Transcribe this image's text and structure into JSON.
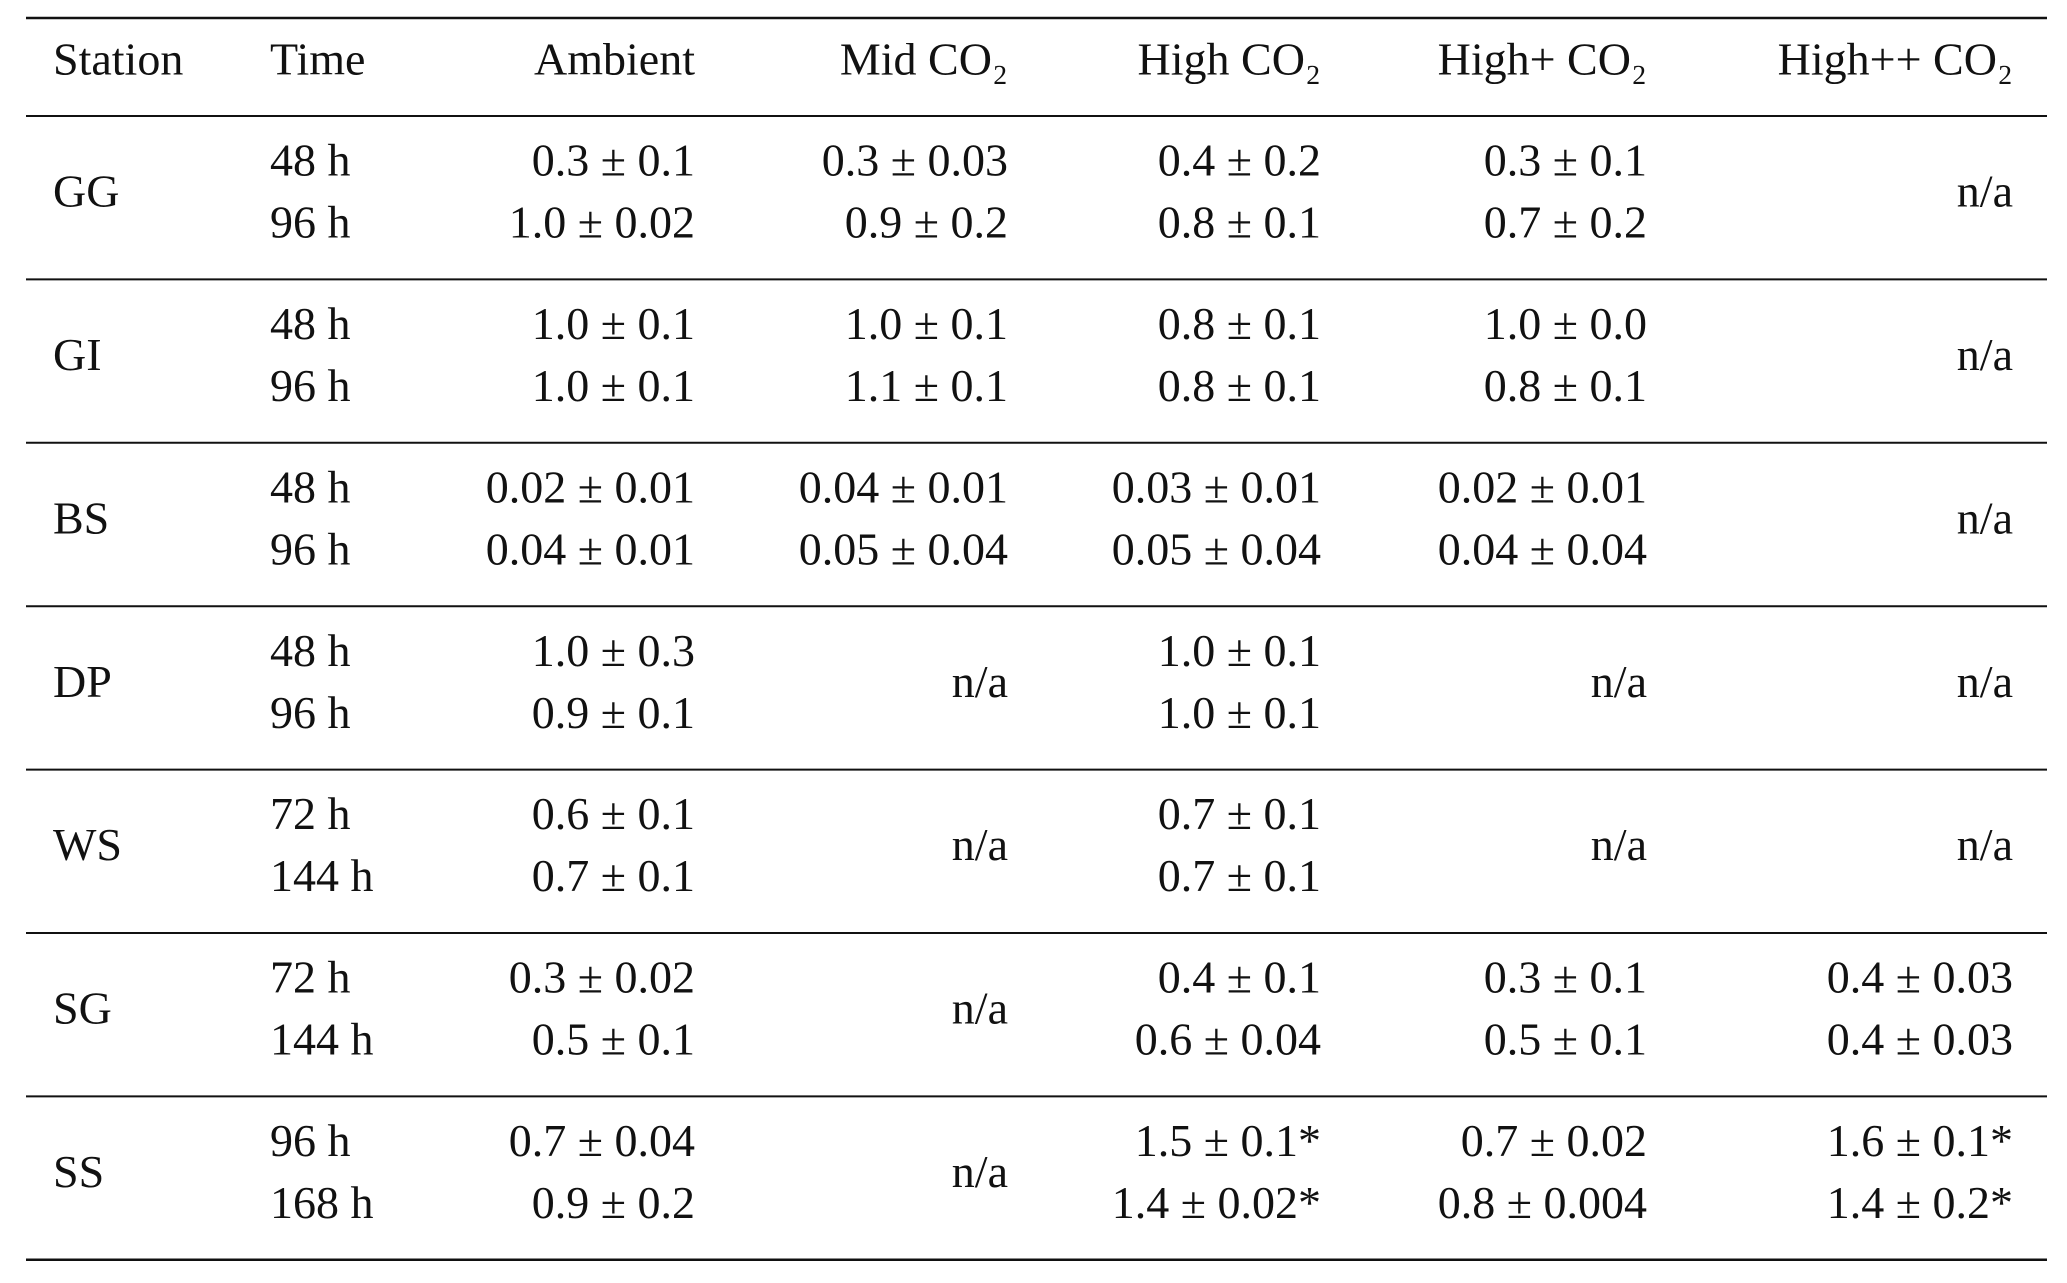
{
  "table": {
    "headers": [
      "Station",
      "Time",
      "Ambient",
      "Mid CO₂",
      "High CO₂",
      "High+ CO₂",
      "High++ CO₂"
    ],
    "rows": [
      {
        "station": "GG",
        "times": [
          "48 h",
          "96 h"
        ],
        "values": [
          [
            "0.3 ± 0.1",
            "1.0 ± 0.02"
          ],
          [
            "0.3 ± 0.03",
            "0.9 ± 0.2"
          ],
          [
            "0.4 ± 0.2",
            "0.8 ± 0.1"
          ],
          [
            "0.3 ± 0.1",
            "0.7 ± 0.2"
          ],
          "n/a"
        ]
      },
      {
        "station": "GI",
        "times": [
          "48 h",
          "96 h"
        ],
        "values": [
          [
            "1.0 ± 0.1",
            "1.0 ± 0.1"
          ],
          [
            "1.0 ± 0.1",
            "1.1 ± 0.1"
          ],
          [
            "0.8 ± 0.1",
            "0.8 ± 0.1"
          ],
          [
            "1.0 ± 0.0",
            "0.8 ± 0.1"
          ],
          "n/a"
        ]
      },
      {
        "station": "BS",
        "times": [
          "48 h",
          "96 h"
        ],
        "values": [
          [
            "0.02 ± 0.01",
            "0.04 ± 0.01"
          ],
          [
            "0.04 ± 0.01",
            "0.05 ± 0.04"
          ],
          [
            "0.03 ± 0.01",
            "0.05 ± 0.04"
          ],
          [
            "0.02 ± 0.01",
            "0.04 ± 0.04"
          ],
          "n/a"
        ]
      },
      {
        "station": "DP",
        "times": [
          "48 h",
          "96 h"
        ],
        "values": [
          [
            "1.0 ± 0.3",
            "0.9 ± 0.1"
          ],
          "n/a",
          [
            "1.0 ± 0.1",
            "1.0 ± 0.1"
          ],
          "n/a",
          "n/a"
        ]
      },
      {
        "station": "WS",
        "times": [
          "72 h",
          "144 h"
        ],
        "values": [
          [
            "0.6 ± 0.1",
            "0.7 ± 0.1"
          ],
          "n/a",
          [
            "0.7 ± 0.1",
            "0.7 ± 0.1"
          ],
          "n/a",
          "n/a"
        ]
      },
      {
        "station": "SG",
        "times": [
          "72 h",
          "144 h"
        ],
        "values": [
          [
            "0.3 ± 0.02",
            "0.5 ± 0.1"
          ],
          "n/a",
          [
            "0.4 ± 0.1",
            "0.6 ± 0.04"
          ],
          [
            "0.3 ± 0.1",
            "0.5 ± 0.1"
          ],
          [
            "0.4 ± 0.03",
            "0.4 ± 0.03"
          ]
        ]
      },
      {
        "station": "SS",
        "times": [
          "96 h",
          "168 h"
        ],
        "values": [
          [
            "0.7 ± 0.04",
            "0.9 ± 0.2"
          ],
          "n/a",
          [
            "1.5 ± 0.1*",
            "1.4 ± 0.02*"
          ],
          [
            "0.7 ± 0.02",
            "0.8 ± 0.004"
          ],
          [
            "1.6 ± 0.1*",
            "1.4 ± 0.2*"
          ]
        ]
      }
    ]
  }
}
